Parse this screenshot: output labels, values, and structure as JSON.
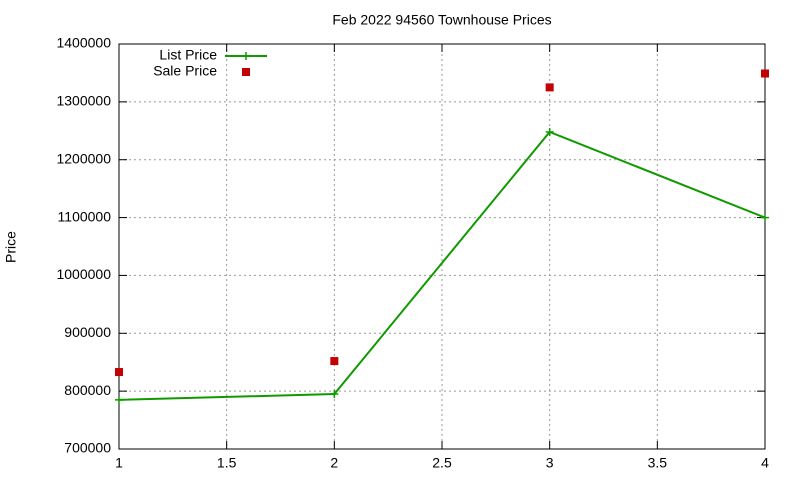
{
  "chart_data": {
    "type": "line",
    "title": "Feb 2022 94560 Townhouse Prices",
    "y_label": "Price",
    "x": [
      1,
      2,
      3,
      4
    ],
    "series": [
      {
        "name": "List Price",
        "color": "#109a00",
        "style": "linespoints",
        "values": [
          785000,
          795000,
          1248000,
          1100000
        ]
      },
      {
        "name": "Sale Price",
        "color": "#c40000",
        "style": "points",
        "values": [
          833000,
          852000,
          1325000,
          1349000
        ]
      }
    ],
    "xlim": [
      1,
      4
    ],
    "xticks": [
      1,
      1.5,
      2,
      2.5,
      3,
      3.5,
      4
    ],
    "ylim": [
      700000,
      1400000
    ],
    "yticks": [
      700000,
      800000,
      900000,
      1000000,
      1100000,
      1200000,
      1300000,
      1400000
    ],
    "grid": true,
    "legend": "top-left"
  }
}
